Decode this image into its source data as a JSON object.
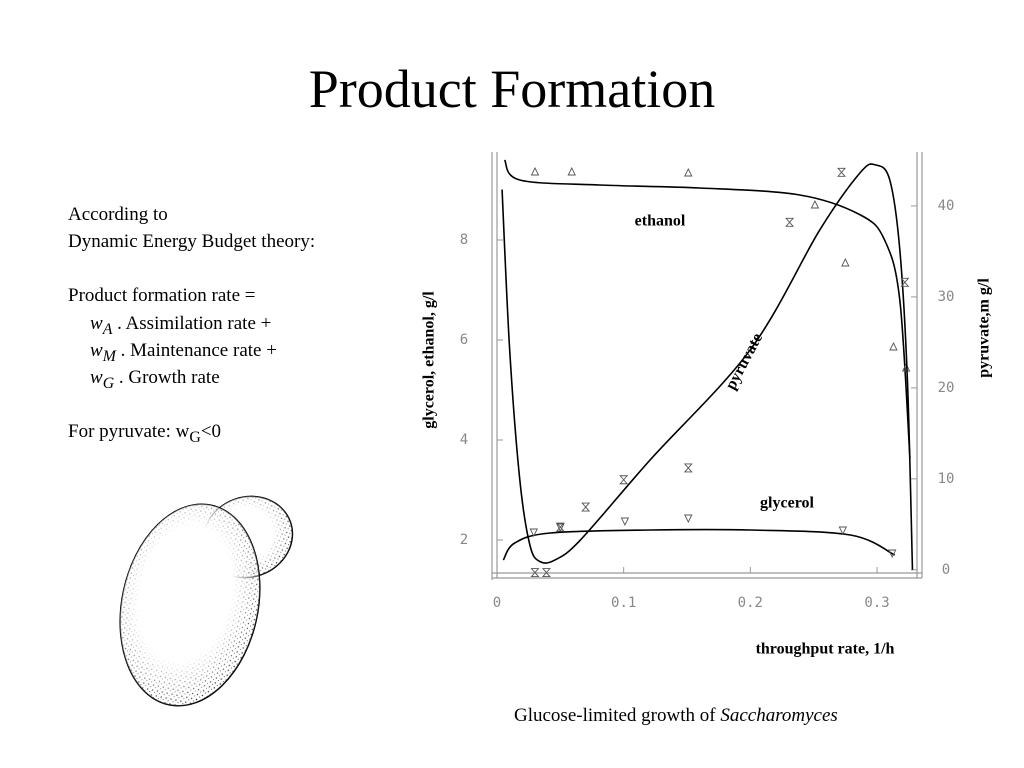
{
  "title": "Product Formation",
  "text": {
    "line1": "According to",
    "line2": "Dynamic Energy Budget theory:",
    "line3": "Product formation rate =",
    "items": [
      {
        "w": "w",
        "sub": "A",
        "text": ". Assimilation rate +"
      },
      {
        "w": "w",
        "sub": "M",
        "text": ". Maintenance rate +"
      },
      {
        "w": "w",
        "sub": "G",
        "text": ". Growth rate"
      }
    ],
    "pyruvate": {
      "text": "For pyruvate: w",
      "sub": "G",
      "tail": "<0"
    }
  },
  "caption": {
    "text": "Glucose-limited growth of",
    "emphasis": "Saccharomyces"
  },
  "chart_data": {
    "type": "line",
    "x_label": "throughput rate, 1/h",
    "y_label": "glycerol, ethanol, g/l",
    "y2_label": "pyruvate,m g/l",
    "xlim": [
      0,
      0.33
    ],
    "ylim": [
      1.24,
      9.7
    ],
    "y2lim": [
      -0.9,
      45.6
    ],
    "xticks": [
      0,
      0.1,
      0.2,
      0.3
    ],
    "yticks": [
      2,
      4,
      6,
      8
    ],
    "y2ticks": [
      0,
      10,
      20,
      30,
      40
    ],
    "series": [
      {
        "name": "ethanol",
        "color": "#000000",
        "axis": "y",
        "marker": "triangle-up",
        "x": [
          0.006,
          0.018,
          0.081,
          0.16,
          0.239,
          0.287,
          0.306,
          0.318,
          0.326
        ],
        "values": [
          9.6,
          9.2,
          9.1,
          9.04,
          8.9,
          8.5,
          8.0,
          6.8,
          3.64
        ],
        "observed": {
          "x": [
            0.03,
            0.059,
            0.151,
            0.251,
            0.275,
            0.313,
            0.323
          ],
          "values": [
            9.36,
            9.36,
            9.34,
            8.7,
            7.54,
            5.86,
            5.44
          ]
        }
      },
      {
        "name": "glycerol",
        "color": "#000000",
        "axis": "y",
        "marker": "triangle-down",
        "x": [
          0.005,
          0.014,
          0.042,
          0.121,
          0.2,
          0.279,
          0.314
        ],
        "values": [
          1.6,
          1.94,
          2.14,
          2.2,
          2.2,
          2.1,
          1.7
        ],
        "observed": {
          "x": [
            0.029,
            0.05,
            0.101,
            0.151,
            0.273,
            0.312
          ],
          "values": [
            2.16,
            2.26,
            2.38,
            2.44,
            2.2,
            1.74
          ]
        }
      },
      {
        "name": "pyruvate",
        "color": "#000000",
        "axis": "y2",
        "marker": "hourglass",
        "x": [
          0.004,
          0.01,
          0.018,
          0.026,
          0.034,
          0.046,
          0.066,
          0.121,
          0.2,
          0.255,
          0.287,
          0.299,
          0.31,
          0.318,
          0.324,
          0.328
        ],
        "values": [
          41.8,
          24.2,
          9.9,
          2.7,
          0.9,
          1.1,
          3.3,
          12.1,
          24.2,
          37.4,
          43.7,
          44.5,
          42.9,
          35.2,
          20.9,
          0
        ],
        "observed": {
          "x": [
            0.03,
            0.039,
            0.05,
            0.07,
            0.1,
            0.151,
            0.231,
            0.272,
            0.322
          ],
          "values": [
            -0.3,
            -0.3,
            4.7,
            6.9,
            9.9,
            11.2,
            38.2,
            43.7,
            31.6
          ]
        }
      }
    ]
  }
}
